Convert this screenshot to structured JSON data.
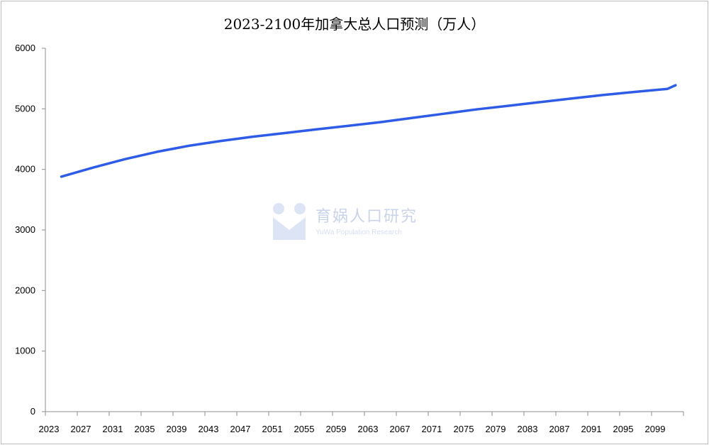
{
  "chart_data": {
    "type": "line",
    "title": "2023-2100年加拿大总人口预测（万人）",
    "xlabel": "",
    "ylabel": "",
    "ylim": [
      0,
      6000
    ],
    "yticks": [
      0,
      1000,
      2000,
      3000,
      4000,
      5000,
      6000
    ],
    "x_tick_labels": [
      "2023",
      "2027",
      "2031",
      "2035",
      "2039",
      "2043",
      "2047",
      "2051",
      "2055",
      "2059",
      "2063",
      "2067",
      "2071",
      "2075",
      "2079",
      "2083",
      "2087",
      "2091",
      "2095",
      "2099"
    ],
    "grid": false,
    "legend": "none",
    "series": [
      {
        "color": "#2e5ce6",
        "x": [
          2023,
          2027,
          2031,
          2035,
          2039,
          2043,
          2047,
          2051,
          2055,
          2059,
          2063,
          2067,
          2071,
          2075,
          2079,
          2083,
          2087,
          2091,
          2095,
          2099,
          2100
        ],
        "values": [
          3880,
          4030,
          4170,
          4290,
          4390,
          4470,
          4540,
          4600,
          4660,
          4720,
          4780,
          4850,
          4920,
          4990,
          5050,
          5110,
          5170,
          5230,
          5280,
          5330,
          5390
        ]
      }
    ]
  },
  "watermark": {
    "text": "育娲人口研究",
    "subtext": "YuWa Population Research"
  }
}
